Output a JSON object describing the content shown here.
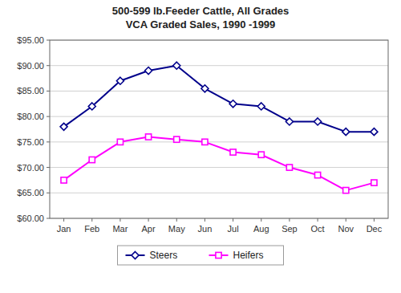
{
  "chart_data": {
    "type": "line",
    "title": "500-599 lb.Feeder Cattle, All Grades",
    "subtitle": "VCA Graded Sales, 1990 -1999",
    "categories": [
      "Jan",
      "Feb",
      "Mar",
      "Apr",
      "May",
      "Jun",
      "Jul",
      "Aug",
      "Sep",
      "Oct",
      "Nov",
      "Dec"
    ],
    "series": [
      {
        "name": "Steers",
        "color": "#00008B",
        "marker": "diamond",
        "values": [
          78.0,
          82.0,
          87.0,
          89.0,
          90.0,
          85.5,
          82.5,
          82.0,
          79.0,
          79.0,
          77.0,
          77.0
        ]
      },
      {
        "name": "Heifers",
        "color": "#FF00FF",
        "marker": "square",
        "values": [
          67.5,
          71.5,
          75.0,
          76.0,
          75.5,
          75.0,
          73.0,
          72.5,
          70.0,
          68.5,
          65.5,
          67.0
        ]
      }
    ],
    "ylim": [
      60.0,
      95.0
    ],
    "yticks": [
      {
        "value": 60.0,
        "label": "$60.00"
      },
      {
        "value": 65.0,
        "label": "$65.00"
      },
      {
        "value": 70.0,
        "label": "$70.00"
      },
      {
        "value": 75.0,
        "label": "$75.00"
      },
      {
        "value": 80.0,
        "label": "$80.00"
      },
      {
        "value": 85.0,
        "label": "$85.00"
      },
      {
        "value": 90.0,
        "label": "$90.00"
      },
      {
        "value": 95.0,
        "label": "$95.00"
      }
    ],
    "grid": true,
    "legend": "bottom"
  }
}
